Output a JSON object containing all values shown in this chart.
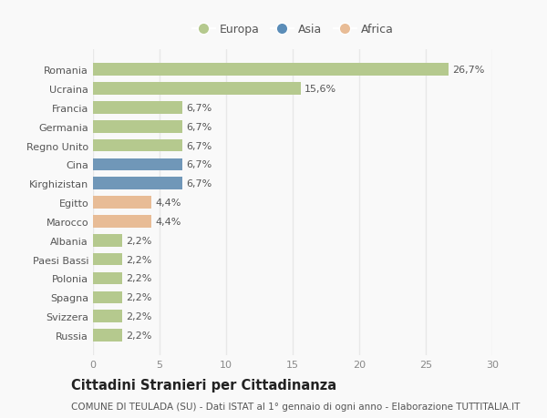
{
  "categories": [
    "Romania",
    "Ucraina",
    "Francia",
    "Germania",
    "Regno Unito",
    "Cina",
    "Kirghizistan",
    "Egitto",
    "Marocco",
    "Albania",
    "Paesi Bassi",
    "Polonia",
    "Spagna",
    "Svizzera",
    "Russia"
  ],
  "values": [
    26.7,
    15.6,
    6.7,
    6.7,
    6.7,
    6.7,
    6.7,
    4.4,
    4.4,
    2.2,
    2.2,
    2.2,
    2.2,
    2.2,
    2.2
  ],
  "labels": [
    "26,7%",
    "15,6%",
    "6,7%",
    "6,7%",
    "6,7%",
    "6,7%",
    "6,7%",
    "4,4%",
    "4,4%",
    "2,2%",
    "2,2%",
    "2,2%",
    "2,2%",
    "2,2%",
    "2,2%"
  ],
  "colors": [
    "#b5c98e",
    "#b5c98e",
    "#b5c98e",
    "#b5c98e",
    "#b5c98e",
    "#7097b8",
    "#7097b8",
    "#e8bc96",
    "#e8bc96",
    "#b5c98e",
    "#b5c98e",
    "#b5c98e",
    "#b5c98e",
    "#b5c98e",
    "#b5c98e"
  ],
  "legend": [
    {
      "label": "Europa",
      "color": "#b5c98e"
    },
    {
      "label": "Asia",
      "color": "#5b8db8"
    },
    {
      "label": "Africa",
      "color": "#e8bc96"
    }
  ],
  "xlim": [
    0,
    30
  ],
  "xticks": [
    0,
    5,
    10,
    15,
    20,
    25,
    30
  ],
  "title": "Cittadini Stranieri per Cittadinanza",
  "subtitle": "COMUNE DI TEULADA (SU) - Dati ISTAT al 1° gennaio di ogni anno - Elaborazione TUTTITALIA.IT",
  "background_color": "#f9f9f9",
  "grid_color": "#e8e8e8",
  "bar_height": 0.65,
  "label_fontsize": 8,
  "tick_fontsize": 8,
  "title_fontsize": 10.5,
  "subtitle_fontsize": 7.5
}
